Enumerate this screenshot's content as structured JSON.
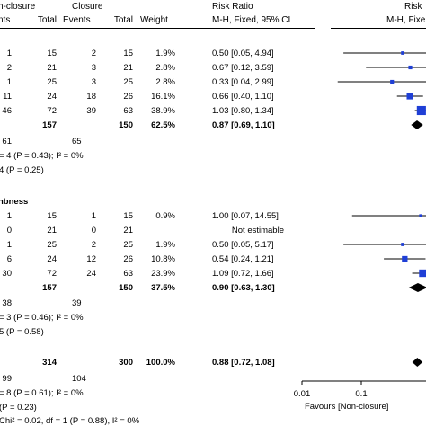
{
  "header": {
    "group1_title": "n-closure",
    "group2_title": "Closure",
    "effect_title": "Risk Ratio",
    "plot_title": "Risk",
    "col_events1": "nts",
    "col_total1": "Total",
    "col_events2": "Events",
    "col_total2": "Total",
    "col_weight": "Weight",
    "col_method": "M-H, Fixed, 95% CI",
    "plot_method": "M-H, Fixe"
  },
  "subgroups": [
    {
      "title": "",
      "rows": [
        {
          "ev1": "1",
          "t1": "15",
          "ev2": "2",
          "t2": "15",
          "w": "1.9%",
          "rr": "0.50 [0.05, 4.94]"
        },
        {
          "ev1": "2",
          "t1": "21",
          "ev2": "3",
          "t2": "21",
          "w": "2.8%",
          "rr": "0.67 [0.12, 3.59]"
        },
        {
          "ev1": "1",
          "t1": "25",
          "ev2": "3",
          "t2": "25",
          "w": "2.8%",
          "rr": "0.33 [0.04, 2.99]"
        },
        {
          "ev1": "11",
          "t1": "24",
          "ev2": "18",
          "t2": "26",
          "w": "16.1%",
          "rr": "0.66 [0.40, 1.10]"
        },
        {
          "ev1": "46",
          "t1": "72",
          "ev2": "39",
          "t2": "63",
          "w": "38.9%",
          "rr": "1.03 [0.80, 1.34]"
        }
      ],
      "subtotal": {
        "t1": "157",
        "t2": "150",
        "w": "62.5%",
        "rr": "0.87 [0.69, 1.10]"
      },
      "events": {
        "e1": "61",
        "e2": "65"
      },
      "heterogeneity": "= 4 (P = 0.43); I² = 0%",
      "overall_effect": "4 (P = 0.25)"
    },
    {
      "title": "hbness",
      "rows": [
        {
          "ev1": "1",
          "t1": "15",
          "ev2": "1",
          "t2": "15",
          "w": "0.9%",
          "rr": "1.00 [0.07, 14.55]"
        },
        {
          "ev1": "0",
          "t1": "21",
          "ev2": "0",
          "t2": "21",
          "w": "",
          "rr": "Not estimable"
        },
        {
          "ev1": "1",
          "t1": "25",
          "ev2": "2",
          "t2": "25",
          "w": "1.9%",
          "rr": "0.50 [0.05, 5.17]"
        },
        {
          "ev1": "6",
          "t1": "24",
          "ev2": "12",
          "t2": "26",
          "w": "10.8%",
          "rr": "0.54 [0.24, 1.21]"
        },
        {
          "ev1": "30",
          "t1": "72",
          "ev2": "24",
          "t2": "63",
          "w": "23.9%",
          "rr": "1.09 [0.72, 1.66]"
        }
      ],
      "subtotal": {
        "t1": "157",
        "t2": "150",
        "w": "37.5%",
        "rr": "0.90 [0.63, 1.30]"
      },
      "events": {
        "e1": "38",
        "e2": "39"
      },
      "heterogeneity": "= 3 (P = 0.46); I² = 0%",
      "overall_effect": "5 (P = 0.58)"
    }
  ],
  "total": {
    "t1": "314",
    "t2": "300",
    "w": "100.0%",
    "rr": "0.88 [0.72, 1.08]"
  },
  "total_events": {
    "e1": "99",
    "e2": "104"
  },
  "total_heterogeneity": "= 8 (P = 0.61); I² = 0%",
  "total_overall": "(P = 0.23)",
  "subgroup_diff": "Chi² = 0.02, df = 1 (P = 0.88), I² = 0%",
  "axis": {
    "tick_labels": [
      "0.01",
      "0.1"
    ],
    "favours_label": "Favours [Non-closure]"
  },
  "colors": {
    "point": "#1f3fd6",
    "line": "#000000"
  },
  "chart_data": {
    "type": "forest",
    "xscale": "log",
    "xlim": [
      0.01,
      1
    ],
    "xticks": [
      0.01,
      0.1
    ],
    "studies": [
      {
        "subgroup": 0,
        "rr": 0.5,
        "lo": 0.05,
        "hi": 4.94,
        "weight": 1.9
      },
      {
        "subgroup": 0,
        "rr": 0.67,
        "lo": 0.12,
        "hi": 3.59,
        "weight": 2.8
      },
      {
        "subgroup": 0,
        "rr": 0.33,
        "lo": 0.04,
        "hi": 2.99,
        "weight": 2.8
      },
      {
        "subgroup": 0,
        "rr": 0.66,
        "lo": 0.4,
        "hi": 1.1,
        "weight": 16.1
      },
      {
        "subgroup": 0,
        "rr": 1.03,
        "lo": 0.8,
        "hi": 1.34,
        "weight": 38.9
      },
      {
        "subgroup": 1,
        "rr": 1.0,
        "lo": 0.07,
        "hi": 14.55,
        "weight": 0.9
      },
      {
        "subgroup": 1,
        "rr": null,
        "lo": null,
        "hi": null,
        "weight": 0
      },
      {
        "subgroup": 1,
        "rr": 0.5,
        "lo": 0.05,
        "hi": 5.17,
        "weight": 1.9
      },
      {
        "subgroup": 1,
        "rr": 0.54,
        "lo": 0.24,
        "hi": 1.21,
        "weight": 10.8
      },
      {
        "subgroup": 1,
        "rr": 1.09,
        "lo": 0.72,
        "hi": 1.66,
        "weight": 23.9
      }
    ],
    "subtotals": [
      {
        "rr": 0.87,
        "lo": 0.69,
        "hi": 1.1
      },
      {
        "rr": 0.9,
        "lo": 0.63,
        "hi": 1.3
      }
    ],
    "overall": {
      "rr": 0.88,
      "lo": 0.72,
      "hi": 1.08
    }
  }
}
